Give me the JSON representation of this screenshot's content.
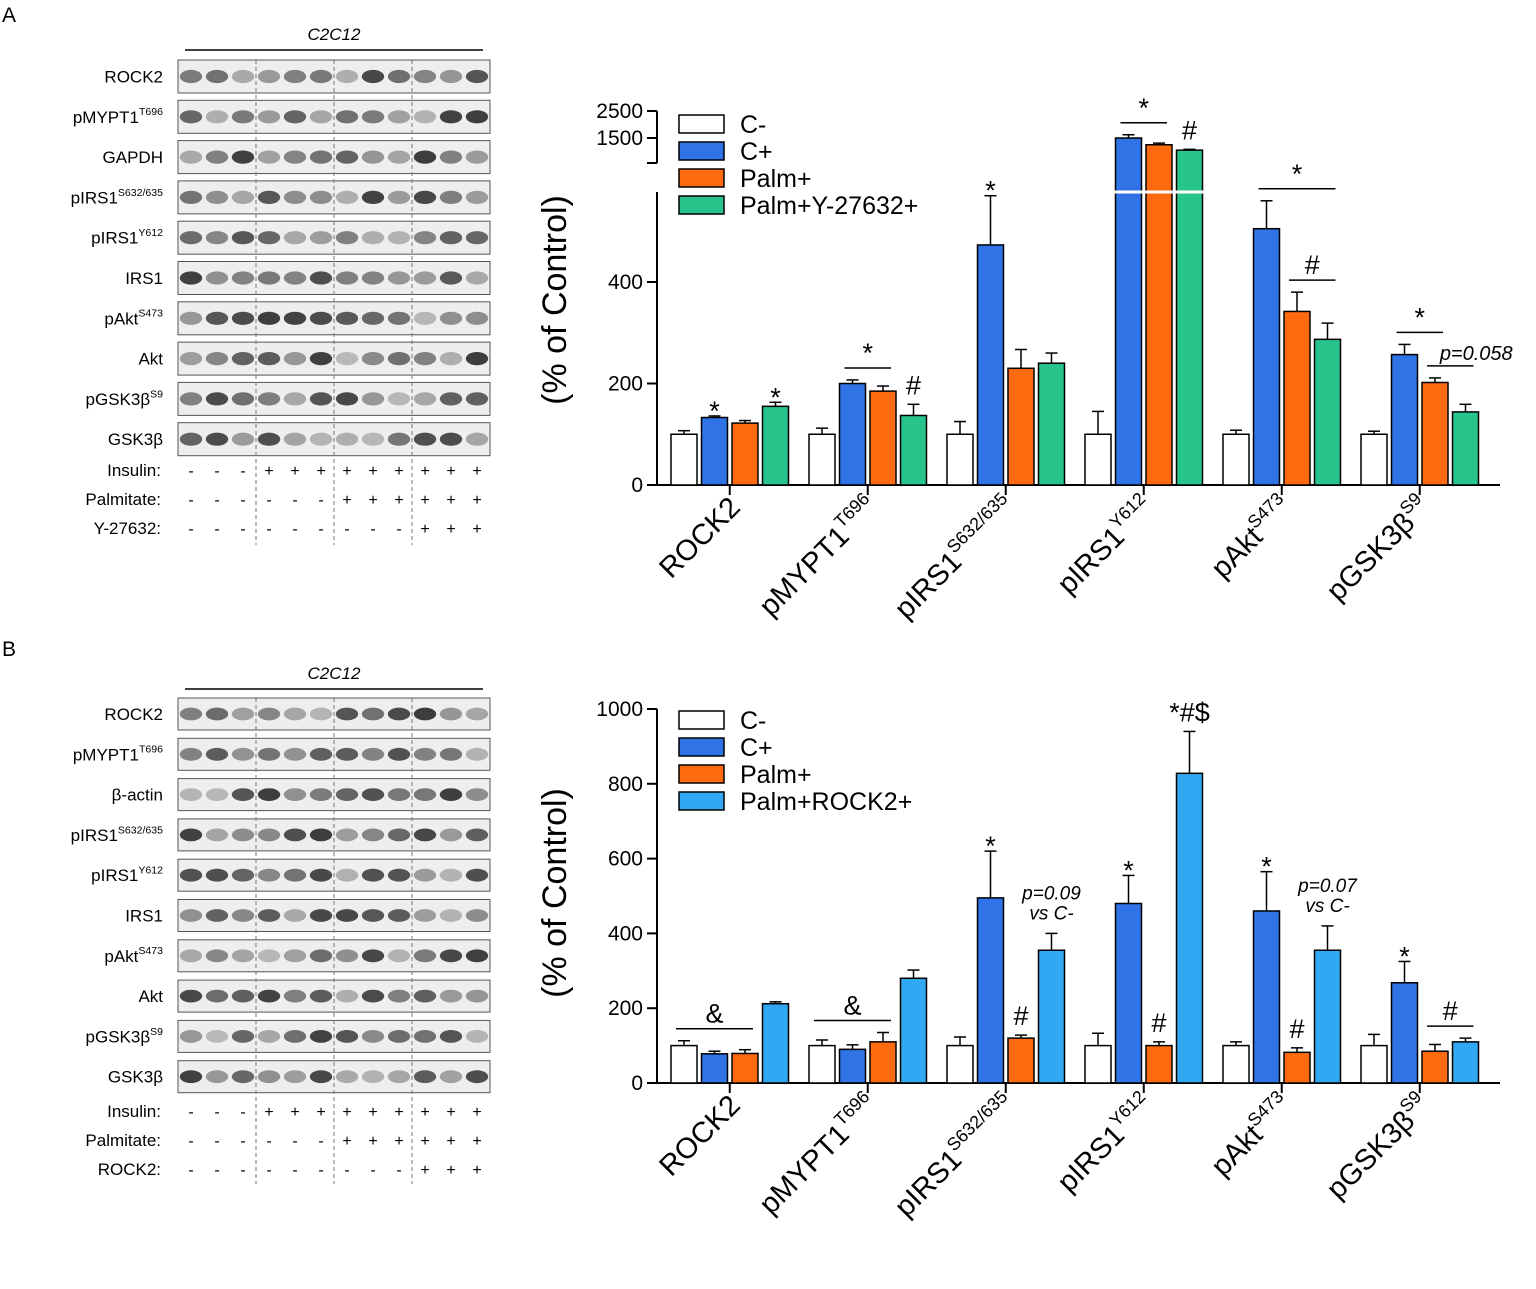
{
  "panels": [
    {
      "label": "A",
      "blot": {
        "cell_line": "C2C12",
        "rows": [
          {
            "name": "ROCK2",
            "sup": ""
          },
          {
            "name": "pMYPT1",
            "sup": "T696"
          },
          {
            "name": "GAPDH",
            "sup": ""
          },
          {
            "name": "pIRS1",
            "sup": "S632/635"
          },
          {
            "name": "pIRS1",
            "sup": "Y612"
          },
          {
            "name": "IRS1",
            "sup": ""
          },
          {
            "name": "pAkt",
            "sup": "S473"
          },
          {
            "name": "Akt",
            "sup": ""
          },
          {
            "name": "pGSK3β",
            "sup": "S9"
          },
          {
            "name": "GSK3β",
            "sup": ""
          }
        ],
        "treatments": [
          {
            "label": "Insulin:",
            "signs": [
              "-",
              "-",
              "-",
              "+",
              "+",
              "+",
              "+",
              "+",
              "+",
              "+",
              "+",
              "+"
            ]
          },
          {
            "label": "Palmitate:",
            "signs": [
              "-",
              "-",
              "-",
              "-",
              "-",
              "-",
              "+",
              "+",
              "+",
              "+",
              "+",
              "+"
            ]
          },
          {
            "label": "Y-27632:",
            "signs": [
              "-",
              "-",
              "-",
              "-",
              "-",
              "-",
              "-",
              "-",
              "-",
              "+",
              "+",
              "+"
            ]
          }
        ]
      }
    },
    {
      "label": "B",
      "blot": {
        "cell_line": "C2C12",
        "rows": [
          {
            "name": "ROCK2",
            "sup": ""
          },
          {
            "name": "pMYPT1",
            "sup": "T696"
          },
          {
            "name": "β-actin",
            "sup": ""
          },
          {
            "name": "pIRS1",
            "sup": "S632/635"
          },
          {
            "name": "pIRS1",
            "sup": "Y612"
          },
          {
            "name": "IRS1",
            "sup": ""
          },
          {
            "name": "pAkt",
            "sup": "S473"
          },
          {
            "name": "Akt",
            "sup": ""
          },
          {
            "name": "pGSK3β",
            "sup": "S9"
          },
          {
            "name": "GSK3β",
            "sup": ""
          }
        ],
        "treatments": [
          {
            "label": "Insulin:",
            "signs": [
              "-",
              "-",
              "-",
              "+",
              "+",
              "+",
              "+",
              "+",
              "+",
              "+",
              "+",
              "+"
            ]
          },
          {
            "label": "Palmitate:",
            "signs": [
              "-",
              "-",
              "-",
              "-",
              "-",
              "-",
              "+",
              "+",
              "+",
              "+",
              "+",
              "+"
            ]
          },
          {
            "label": "ROCK2:",
            "signs": [
              "-",
              "-",
              "-",
              "-",
              "-",
              "-",
              "-",
              "-",
              "-",
              "+",
              "+",
              "+"
            ]
          }
        ]
      }
    }
  ],
  "chart_data": [
    {
      "type": "bar",
      "panel": "A",
      "ylabel": "(% of Control)",
      "axis_break": true,
      "lower_ticks": [
        "0",
        "200",
        "400"
      ],
      "upper_ticks": [
        "1500",
        "2500"
      ],
      "ylim": [
        0,
        2500
      ],
      "categories": [
        {
          "main": "ROCK2",
          "sup": ""
        },
        {
          "main": "pMYPT1",
          "sup": "T696"
        },
        {
          "main": "pIRS1",
          "sup": "S632/635"
        },
        {
          "main": "pIRS1",
          "sup": "Y612"
        },
        {
          "main": "pAkt",
          "sup": "S473"
        },
        {
          "main": "pGSK3β",
          "sup": "S9"
        }
      ],
      "series": [
        {
          "name": "C-",
          "color": "#ffffff",
          "values": [
            100,
            100,
            100,
            100,
            100,
            100
          ],
          "errors": [
            7,
            12,
            25,
            45,
            8,
            6
          ]
        },
        {
          "name": "C+",
          "color": "#2f73e6",
          "values": [
            133,
            200,
            473,
            1500,
            505,
            257
          ],
          "errors": [
            3,
            7,
            97,
            120,
            55,
            20
          ]
        },
        {
          "name": "Palm+",
          "color": "#ff6a0f",
          "values": [
            122,
            185,
            230,
            1250,
            342,
            202
          ],
          "errors": [
            5,
            10,
            37,
            60,
            38,
            9
          ]
        },
        {
          "name": "Palm+Y-27632+",
          "color": "#27c48c",
          "values": [
            155,
            137,
            240,
            1050,
            287,
            144
          ],
          "errors": [
            8,
            22,
            20,
            30,
            32,
            15
          ]
        }
      ],
      "annotations": [
        {
          "text": "*",
          "category": 0,
          "series": 1
        },
        {
          "text": "*",
          "category": 0,
          "series": 3
        },
        {
          "text": "*",
          "category": 1,
          "bracket": [
            1,
            2
          ]
        },
        {
          "text": "#",
          "category": 1,
          "series": 3
        },
        {
          "text": "*",
          "category": 2,
          "series": 1
        },
        {
          "text": "*",
          "category": 3,
          "bracket": [
            1,
            2
          ]
        },
        {
          "text": "#",
          "category": 3,
          "series": 3
        },
        {
          "text": "*",
          "category": 4,
          "bracket": [
            1,
            3
          ]
        },
        {
          "text": "#",
          "category": 4,
          "bracket": [
            2,
            3
          ]
        },
        {
          "text": "*",
          "category": 5,
          "bracket": [
            1,
            2
          ]
        },
        {
          "text": "p=0.058",
          "category": 5,
          "bracket": [
            2,
            3
          ]
        }
      ]
    },
    {
      "type": "bar",
      "panel": "B",
      "ylabel": "(% of Control)",
      "ylim": [
        0,
        1000
      ],
      "yticks": [
        "0",
        "200",
        "400",
        "600",
        "800",
        "1000"
      ],
      "categories": [
        {
          "main": "ROCK2",
          "sup": ""
        },
        {
          "main": "pMYPT1",
          "sup": "T696"
        },
        {
          "main": "pIRS1",
          "sup": "S632/635"
        },
        {
          "main": "pIRS1",
          "sup": "Y612"
        },
        {
          "main": "pAkt",
          "sup": "S473"
        },
        {
          "main": "pGSK3β",
          "sup": "S9"
        }
      ],
      "series": [
        {
          "name": "C-",
          "color": "#ffffff",
          "values": [
            100,
            100,
            100,
            100,
            100,
            100
          ],
          "errors": [
            13,
            15,
            23,
            33,
            10,
            30
          ]
        },
        {
          "name": "C+",
          "color": "#2f73e6",
          "values": [
            78,
            90,
            495,
            480,
            460,
            268
          ],
          "errors": [
            7,
            12,
            125,
            75,
            105,
            57
          ]
        },
        {
          "name": "Palm+",
          "color": "#ff6a0f",
          "values": [
            79,
            110,
            120,
            100,
            82,
            85
          ],
          "errors": [
            10,
            25,
            8,
            10,
            12,
            18
          ]
        },
        {
          "name": "Palm+ROCK2+",
          "color": "#31a8f2",
          "values": [
            212,
            280,
            355,
            828,
            355,
            110
          ],
          "errors": [
            5,
            22,
            45,
            112,
            65,
            10
          ]
        }
      ],
      "annotations": [
        {
          "text": "&",
          "category": 0,
          "bracket": [
            0,
            2
          ]
        },
        {
          "text": "&",
          "category": 1,
          "bracket": [
            0,
            2
          ]
        },
        {
          "text": "*",
          "category": 2,
          "series": 1
        },
        {
          "text": "#",
          "category": 2,
          "series": 2
        },
        {
          "text": "p=0.09",
          "category": 2,
          "series": 3
        },
        {
          "text": "vs C-",
          "category": 2,
          "series": 3
        },
        {
          "text": "*",
          "category": 3,
          "series": 1
        },
        {
          "text": "#",
          "category": 3,
          "series": 2
        },
        {
          "text": "*#$",
          "category": 3,
          "series": 3
        },
        {
          "text": "*",
          "category": 4,
          "series": 1
        },
        {
          "text": "#",
          "category": 4,
          "series": 2
        },
        {
          "text": "p=0.07",
          "category": 4,
          "series": 3
        },
        {
          "text": "vs C-",
          "category": 4,
          "series": 3
        },
        {
          "text": "*",
          "category": 5,
          "series": 1
        },
        {
          "text": "#",
          "category": 5,
          "bracket": [
            2,
            3
          ]
        }
      ]
    }
  ]
}
